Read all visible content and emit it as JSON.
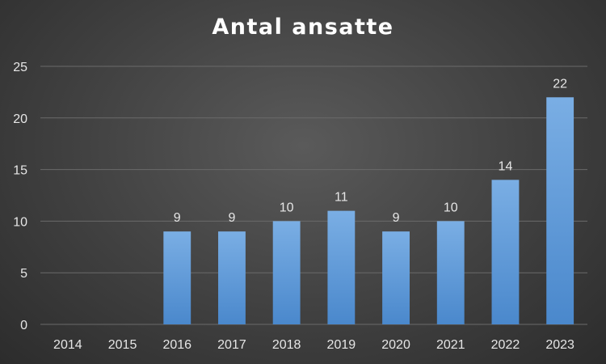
{
  "chart_data": {
    "type": "bar",
    "title": "Antal ansatte",
    "xlabel": "",
    "ylabel": "",
    "categories": [
      "2014",
      "2015",
      "2016",
      "2017",
      "2018",
      "2019",
      "2020",
      "2021",
      "2022",
      "2023"
    ],
    "values": [
      0,
      0,
      9,
      9,
      10,
      11,
      9,
      10,
      14,
      22
    ],
    "data_labels": [
      "",
      "",
      "9",
      "9",
      "10",
      "11",
      "9",
      "10",
      "14",
      "22"
    ],
    "ylim": [
      0,
      25
    ],
    "yticks": [
      "0",
      "5",
      "10",
      "15",
      "20",
      "25"
    ],
    "grid": true,
    "legend": "none",
    "colors": {
      "bar_top": "#7aaee4",
      "bar_bottom": "#4a88cc",
      "grid": "#6a6a6a",
      "text": "#e6e6e6"
    }
  }
}
